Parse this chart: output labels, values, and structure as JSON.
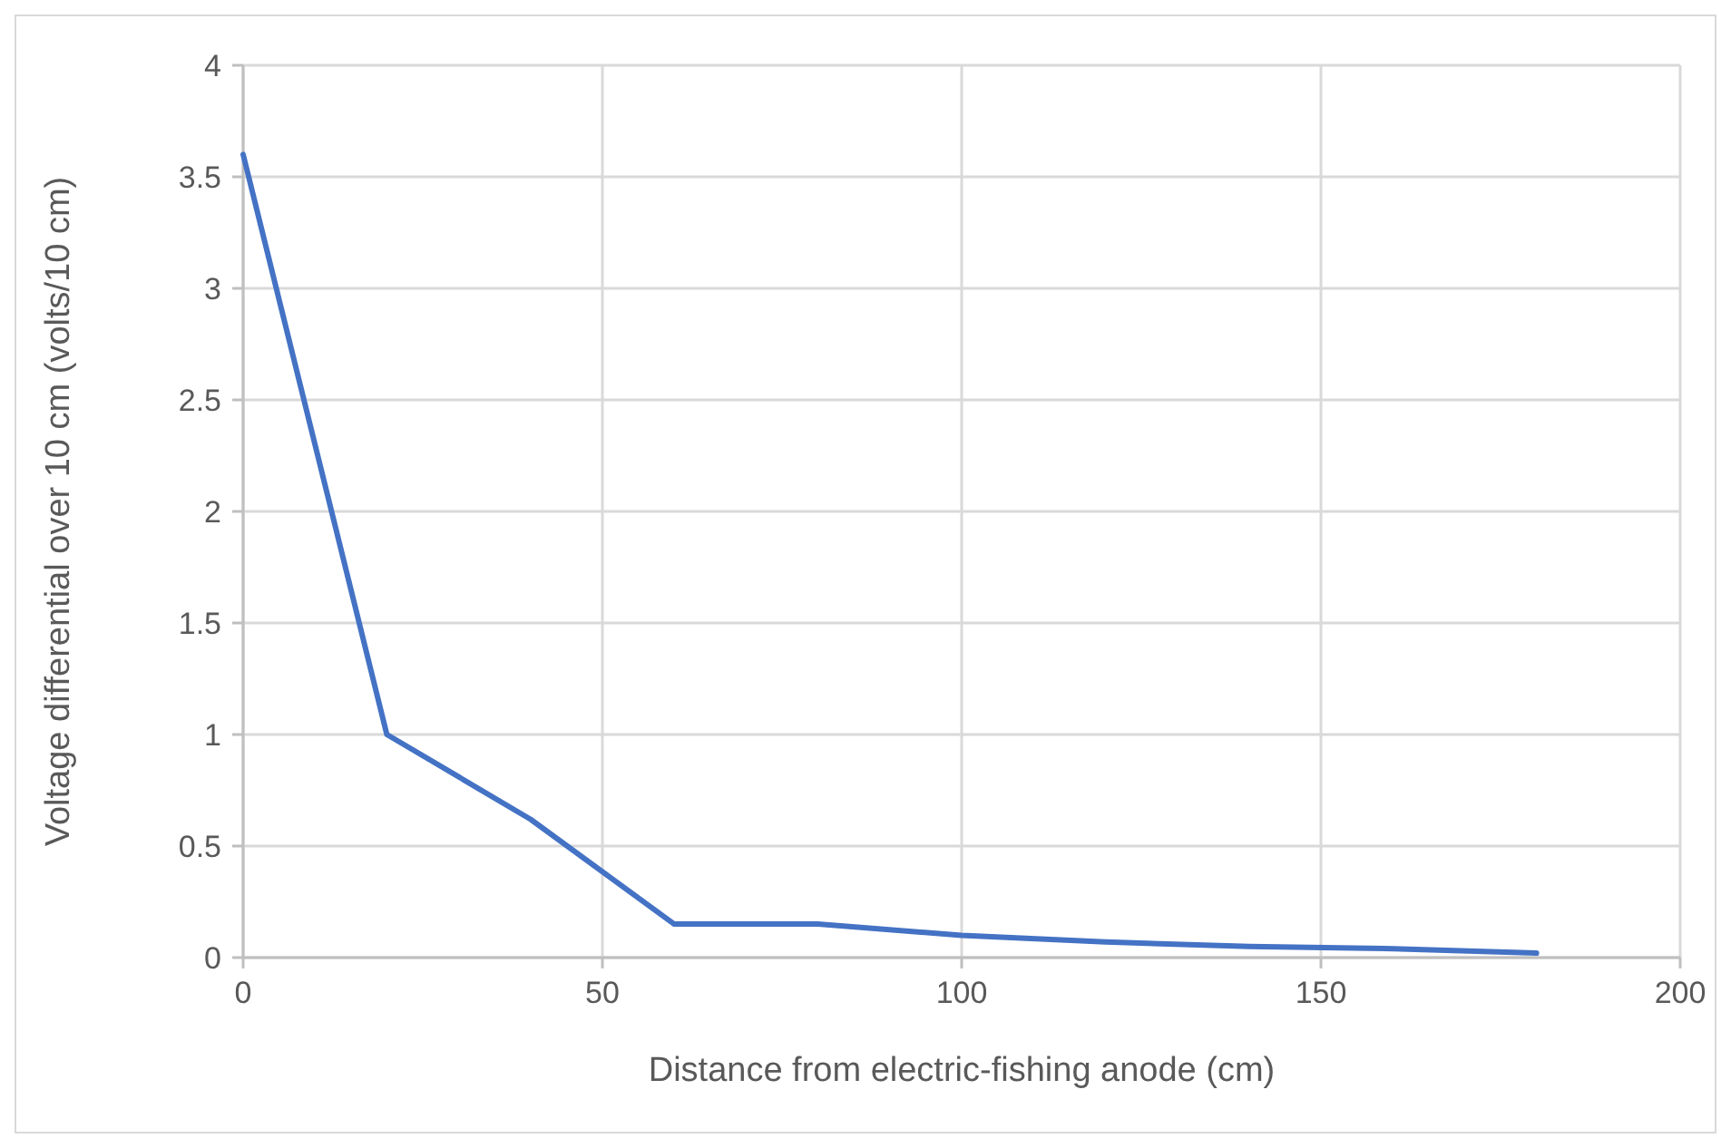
{
  "chart_data": {
    "type": "line",
    "xlabel": "Distance from electric-fishing anode (cm)",
    "ylabel": "Voltage differential over 10 cm (volts/10 cm)",
    "x": [
      0,
      20,
      40,
      60,
      80,
      100,
      120,
      140,
      160,
      180
    ],
    "series": [
      {
        "color": "#4472c4",
        "values": [
          3.6,
          1.0,
          0.62,
          0.15,
          0.15,
          0.1,
          0.07,
          0.05,
          0.04,
          0.02
        ]
      }
    ],
    "xlim": [
      0,
      200
    ],
    "xticks": [
      0,
      50,
      100,
      150,
      200
    ],
    "ylim": [
      0,
      4
    ],
    "yticks": [
      0,
      0.5,
      1,
      1.5,
      2,
      2.5,
      3,
      3.5,
      4
    ],
    "grid": true,
    "marker": "none",
    "line_style": "solid"
  }
}
